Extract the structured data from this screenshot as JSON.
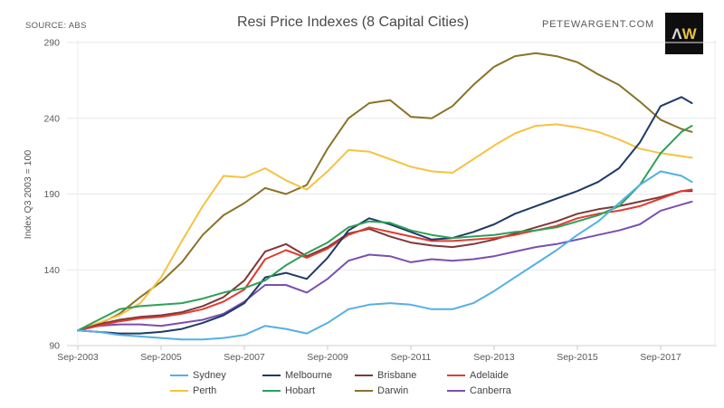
{
  "chart_data": {
    "type": "line",
    "title": "Resi Price Indexes (8 Capital Cities)",
    "source_note": "SOURCE: ABS",
    "brand": "PETEWARGENT.COM",
    "logo": {
      "a": "Λ",
      "w": "W"
    },
    "ylabel": "Index Q3 2003 = 100",
    "ylim": [
      90,
      290
    ],
    "yticks": [
      90,
      140,
      190,
      240,
      290
    ],
    "grid": true,
    "legend_position": "bottom",
    "xticks": [
      {
        "label": "Sep-2003",
        "t": 0
      },
      {
        "label": "Sep-2005",
        "t": 2
      },
      {
        "label": "Sep-2007",
        "t": 4
      },
      {
        "label": "Sep-2009",
        "t": 6
      },
      {
        "label": "Sep-2011",
        "t": 8
      },
      {
        "label": "Sep-2013",
        "t": 10
      },
      {
        "label": "Sep-2015",
        "t": 12
      },
      {
        "label": "Sep-2017",
        "t": 14
      }
    ],
    "x_dates": [
      "Sep-2003",
      "Mar-2004",
      "Sep-2004",
      "Mar-2005",
      "Sep-2005",
      "Mar-2006",
      "Sep-2006",
      "Mar-2007",
      "Sep-2007",
      "Mar-2008",
      "Sep-2008",
      "Mar-2009",
      "Sep-2009",
      "Mar-2010",
      "Sep-2010",
      "Mar-2011",
      "Sep-2011",
      "Mar-2012",
      "Sep-2012",
      "Mar-2013",
      "Sep-2013",
      "Mar-2014",
      "Sep-2014",
      "Mar-2015",
      "Sep-2015",
      "Mar-2016",
      "Sep-2016",
      "Mar-2017",
      "Sep-2017",
      "Mar-2018",
      "Jun-2018"
    ],
    "t": [
      0,
      0.5,
      1,
      1.5,
      2,
      2.5,
      3,
      3.5,
      4,
      4.5,
      5,
      5.5,
      6,
      6.5,
      7,
      7.5,
      8,
      8.5,
      9,
      9.5,
      10,
      10.5,
      11,
      11.5,
      12,
      12.5,
      13,
      13.5,
      14,
      14.5,
      14.75
    ],
    "draw_order": [
      6,
      4,
      7,
      2,
      3,
      1,
      5,
      0
    ],
    "series": [
      {
        "name": "Sydney",
        "color": "#54B0E4",
        "values": [
          100,
          99,
          97,
          96,
          95,
          94,
          94,
          95,
          97,
          103,
          101,
          98,
          105,
          114,
          117,
          118,
          117,
          114,
          114,
          118,
          126,
          135,
          144,
          153,
          163,
          172,
          184,
          196,
          205,
          202,
          198
        ]
      },
      {
        "name": "Melbourne",
        "color": "#1F3A67",
        "values": [
          100,
          99,
          98,
          98,
          99,
          101,
          105,
          110,
          118,
          135,
          138,
          134,
          148,
          166,
          174,
          170,
          165,
          160,
          161,
          165,
          170,
          177,
          182,
          187,
          192,
          198,
          207,
          224,
          248,
          254,
          250
        ]
      },
      {
        "name": "Brisbane",
        "color": "#7E3838",
        "values": [
          100,
          104,
          107,
          109,
          110,
          112,
          116,
          122,
          133,
          152,
          157,
          149,
          155,
          164,
          167,
          162,
          158,
          156,
          155,
          157,
          160,
          164,
          168,
          172,
          177,
          180,
          182,
          185,
          188,
          192,
          192
        ]
      },
      {
        "name": "Adelaide",
        "color": "#E03C31",
        "values": [
          100,
          103,
          106,
          108,
          109,
          111,
          114,
          119,
          127,
          147,
          153,
          148,
          154,
          163,
          168,
          165,
          162,
          159,
          159,
          160,
          161,
          163,
          166,
          169,
          174,
          177,
          179,
          182,
          187,
          192,
          193
        ]
      },
      {
        "name": "Perth",
        "color": "#F5C342",
        "values": [
          100,
          105,
          110,
          118,
          135,
          159,
          182,
          202,
          201,
          207,
          199,
          193,
          205,
          219,
          218,
          213,
          208,
          205,
          204,
          213,
          222,
          230,
          235,
          236,
          234,
          231,
          226,
          220,
          217,
          215,
          214
        ]
      },
      {
        "name": "Hobart",
        "color": "#2FA058",
        "values": [
          100,
          107,
          114,
          116,
          117,
          118,
          121,
          125,
          128,
          133,
          143,
          151,
          158,
          168,
          172,
          171,
          166,
          163,
          161,
          162,
          163,
          165,
          166,
          168,
          172,
          176,
          182,
          196,
          217,
          231,
          235
        ]
      },
      {
        "name": "Darwin",
        "color": "#8A7228",
        "values": [
          100,
          104,
          111,
          122,
          132,
          145,
          163,
          176,
          184,
          194,
          190,
          196,
          220,
          240,
          250,
          252,
          241,
          240,
          248,
          262,
          274,
          281,
          283,
          281,
          277,
          269,
          262,
          251,
          239,
          233,
          231
        ]
      },
      {
        "name": "Canberra",
        "color": "#7A4FAF",
        "values": [
          100,
          103,
          104,
          104,
          103,
          105,
          107,
          111,
          119,
          130,
          130,
          125,
          134,
          146,
          150,
          149,
          145,
          147,
          146,
          147,
          149,
          152,
          155,
          157,
          160,
          163,
          166,
          170,
          179,
          183,
          185
        ]
      }
    ]
  }
}
